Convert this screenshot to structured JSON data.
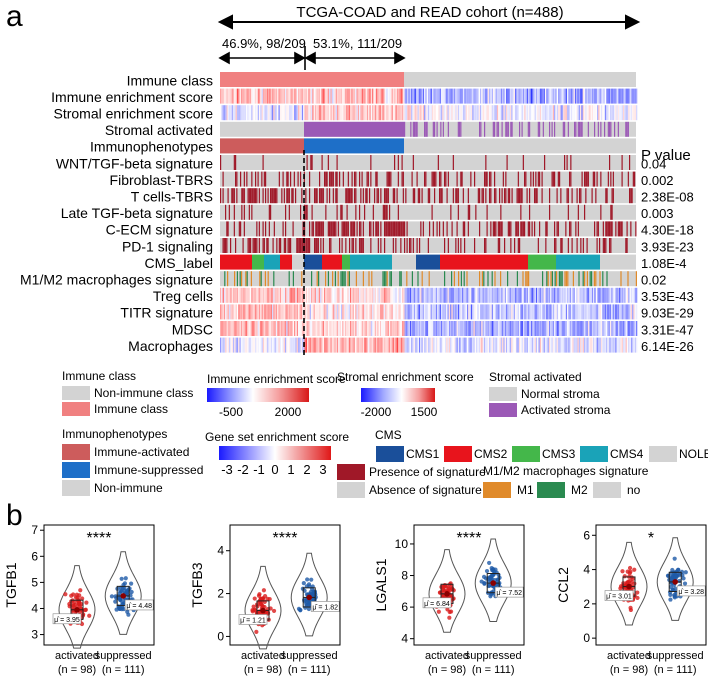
{
  "panel_a": {
    "panel_label": "a",
    "cohort_label": "TCGA-COAD and READ cohort (n=488)",
    "split_left_label": "46.9%, 98/209",
    "split_right_label": "53.1%, 111/209",
    "p_value_header": "P value",
    "rows": [
      {
        "label": "Immune class",
        "p": ""
      },
      {
        "label": "Immune enrichment score",
        "p": ""
      },
      {
        "label": "Stromal enrichment score",
        "p": ""
      },
      {
        "label": "Stromal activated",
        "p": ""
      },
      {
        "label": "Immunophenotypes",
        "p": ""
      },
      {
        "label": "WNT/TGF-beta signature",
        "p": "0.04"
      },
      {
        "label": "Fibroblast-TBRS",
        "p": "0.002"
      },
      {
        "label": "T cells-TBRS",
        "p": "2.38E-08"
      },
      {
        "label": "Late TGF-beta signature",
        "p": "0.003"
      },
      {
        "label": "C-ECM signature",
        "p": "4.30E-18"
      },
      {
        "label": "PD-1 signaling",
        "p": "3.93E-23"
      },
      {
        "label": "CMS_label",
        "p": "1.08E-4"
      },
      {
        "label": "M1/M2 macrophages signature",
        "p": "0.02"
      },
      {
        "label": "Treg cells",
        "p": "3.53E-43"
      },
      {
        "label": "TITR signature",
        "p": "9.03E-29"
      },
      {
        "label": "MDSC",
        "p": "3.31E-47"
      },
      {
        "label": "Macrophages",
        "p": "6.14E-26"
      }
    ],
    "legend": {
      "immune_class": {
        "title": "Immune class",
        "items": [
          "Non-immune class",
          "Immune class"
        ]
      },
      "immune_score": {
        "title": "Immune enrichment score",
        "ticks": [
          "-500",
          "2000"
        ]
      },
      "stromal_score": {
        "title": "Stromal enrichment score",
        "ticks": [
          "-2000",
          "1500"
        ]
      },
      "stromal_activated": {
        "title": "Stromal activated",
        "items": [
          "Normal stroma",
          "Activated stroma"
        ]
      },
      "immunophenotypes": {
        "title": "Immunophenotypes",
        "items": [
          "Immune-activated",
          "Immune-suppressed",
          "Non-immune"
        ]
      },
      "gsea": {
        "title": "Gene set enrichment score",
        "ticks": [
          "-3",
          "-2",
          "-1",
          "0",
          "1",
          "2",
          "3"
        ]
      },
      "signature": {
        "items": [
          "Presence of signature",
          "Absence of signature"
        ]
      },
      "cms": {
        "title": "CMS",
        "items": [
          "CMS1",
          "CMS2",
          "CMS3",
          "CMS4",
          "NOLBL"
        ]
      },
      "m1m2": {
        "title": "M1/M2 macrophages signature",
        "items": [
          "M1",
          "M2",
          "no"
        ]
      }
    },
    "colors": {
      "immune_class": "#f08080",
      "non_immune": "#d3d3d3",
      "activated_stroma": "#9b59b6",
      "immune_activated": "#cd5c5c",
      "immune_suppressed": "#1e6fc8",
      "presence": "#a01828",
      "cms1": "#1a4f9a",
      "cms2": "#e8141c",
      "cms3": "#44b74a",
      "cms4": "#1aa3b8",
      "m1": "#e08a2a",
      "m2": "#2a8a50"
    }
  },
  "panel_b": {
    "panel_label": "b",
    "groups": [
      "activated",
      "suppressed"
    ],
    "group_n": [
      "(n = 98)",
      "(n = 111)"
    ]
  },
  "chart_data": [
    {
      "type": "violin",
      "title": "",
      "ylabel": "TGFB1",
      "categories": [
        "activated",
        "suppressed"
      ],
      "means": [
        3.95,
        4.48
      ],
      "mean_labels": [
        "μ̂ = 3.95",
        "μ̂ = 4.48"
      ],
      "significance": "****",
      "ylim": [
        2.6,
        7.2
      ],
      "yticks": [
        "3",
        "4",
        "5",
        "6",
        "7"
      ]
    },
    {
      "type": "violin",
      "title": "",
      "ylabel": "TGFB3",
      "categories": [
        "activated",
        "suppressed"
      ],
      "means": [
        1.21,
        1.82
      ],
      "mean_labels": [
        "μ̂ = 1.21",
        "μ̂ = 1.82"
      ],
      "significance": "****",
      "ylim": [
        -0.4,
        5.2
      ],
      "yticks": [
        "0",
        "2",
        "4"
      ]
    },
    {
      "type": "violin",
      "title": "",
      "ylabel": "LGALS1",
      "categories": [
        "activated",
        "suppressed"
      ],
      "means": [
        6.84,
        7.52
      ],
      "mean_labels": [
        "μ̂ = 6.84",
        "μ̂ = 7.52"
      ],
      "significance": "****",
      "ylim": [
        3.6,
        11.2
      ],
      "yticks": [
        "4",
        "6",
        "8",
        "10"
      ]
    },
    {
      "type": "violin",
      "title": "",
      "ylabel": "CCL2",
      "categories": [
        "activated",
        "suppressed"
      ],
      "means": [
        3.01,
        3.28
      ],
      "mean_labels": [
        "μ̂ = 3.01",
        "μ̂ = 3.28"
      ],
      "significance": "*",
      "ylim": [
        -0.4,
        6.6
      ],
      "yticks": [
        "0",
        "2",
        "4",
        "6"
      ]
    }
  ]
}
